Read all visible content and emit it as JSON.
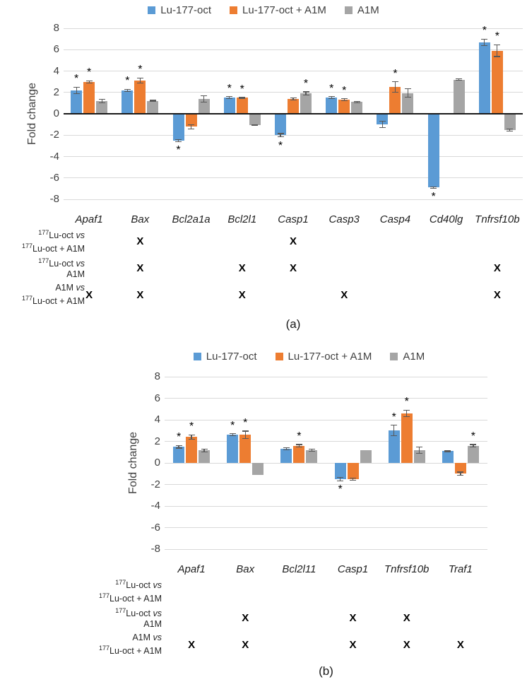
{
  "figure": {
    "panel_a_caption": "(a)",
    "panel_b_caption": "(b)"
  },
  "colors": {
    "series_blue": "#5B9BD5",
    "series_orange": "#ED7D31",
    "series_gray": "#A5A5A5",
    "gridline": "#D9D9D9",
    "zero_axis": "#1A1A1A",
    "error_bar": "#595959"
  },
  "chart_data": [
    {
      "type": "bar",
      "panel": "a",
      "caption": "(a)",
      "title": "",
      "xlabel": "",
      "ylabel": "Fold change",
      "ylim": [
        -8,
        8
      ],
      "yticks": [
        8,
        6,
        4,
        2,
        0,
        -2,
        -4,
        -6,
        -8
      ],
      "grid": true,
      "legend_position": "top-center",
      "significance_marker": "*",
      "categories": [
        "Apaf1",
        "Bax",
        "Bcl2a1a",
        "Bcl2l1",
        "Casp1",
        "Casp3",
        "Casp4",
        "Cd40lg",
        "Tnfrsf10b"
      ],
      "series": [
        {
          "name": "Lu-177-oct",
          "color": "#5B9BD5",
          "values": [
            2.2,
            2.2,
            -2.5,
            1.5,
            -2.0,
            1.5,
            -1.0,
            -6.9,
            6.7
          ],
          "errors": [
            0.3,
            0.1,
            0.1,
            0.1,
            0.15,
            0.1,
            0.3,
            0.05,
            0.3
          ],
          "significant": [
            true,
            true,
            true,
            true,
            true,
            true,
            false,
            true,
            true
          ]
        },
        {
          "name": "Lu-177-oct + A1M",
          "color": "#ED7D31",
          "values": [
            3.0,
            3.1,
            -1.2,
            1.5,
            1.4,
            1.3,
            2.5,
            null,
            5.9
          ],
          "errors": [
            0.1,
            0.25,
            0.2,
            0.05,
            0.1,
            0.1,
            0.5,
            null,
            0.55
          ],
          "significant": [
            true,
            true,
            false,
            true,
            false,
            true,
            true,
            false,
            true
          ]
        },
        {
          "name": "A1M",
          "color": "#A5A5A5",
          "values": [
            1.2,
            1.2,
            1.4,
            -1.05,
            1.9,
            1.1,
            1.95,
            3.2,
            -1.5
          ],
          "errors": [
            0.15,
            0.05,
            0.3,
            0.05,
            0.15,
            0.05,
            0.4,
            0.08,
            0.1
          ],
          "significant": [
            false,
            false,
            false,
            false,
            true,
            false,
            false,
            false,
            false
          ]
        }
      ],
      "comparisons": {
        "mark_symbol": "X",
        "rows": [
          {
            "label_line1": "177Lu-oct vs",
            "label_line2": "177Lu-oct  + A1M",
            "marks": [
              "Bax",
              "Casp1"
            ]
          },
          {
            "label_line1": "177Lu-oct vs",
            "label_line2": "A1M",
            "marks": [
              "Bax",
              "Bcl2l1",
              "Casp1",
              "Tnfrsf10b"
            ]
          },
          {
            "label_line1": "A1M vs",
            "label_line2": "177Lu-oct + A1M",
            "marks": [
              "Apaf1",
              "Bax",
              "Bcl2l1",
              "Casp3",
              "Tnfrsf10b"
            ]
          }
        ]
      }
    },
    {
      "type": "bar",
      "panel": "b",
      "caption": "(b)",
      "title": "",
      "xlabel": "",
      "ylabel": "Fold change",
      "ylim": [
        -8,
        8
      ],
      "yticks": [
        8,
        6,
        4,
        2,
        0,
        -2,
        -4,
        -6,
        -8
      ],
      "grid": true,
      "legend_position": "top-center",
      "significance_marker": "*",
      "categories": [
        "Apaf1",
        "Bax",
        "Bcl2l11",
        "Casp1",
        "Tnfrsf10b",
        "Traf1"
      ],
      "series": [
        {
          "name": "Lu-177-oct",
          "color": "#5B9BD5",
          "values": [
            1.5,
            2.6,
            1.3,
            -1.5,
            3.0,
            1.1
          ],
          "errors": [
            0.12,
            0.1,
            0.1,
            0.15,
            0.5,
            0.05
          ],
          "significant": [
            true,
            true,
            false,
            true,
            true,
            false
          ]
        },
        {
          "name": "Lu-177-oct + A1M",
          "color": "#ED7D31",
          "values": [
            2.4,
            2.6,
            1.6,
            -1.5,
            4.6,
            -1.0
          ],
          "errors": [
            0.2,
            0.35,
            0.1,
            0.1,
            0.3,
            0.15
          ],
          "significant": [
            true,
            true,
            true,
            false,
            true,
            false
          ]
        },
        {
          "name": "A1M",
          "color": "#A5A5A5",
          "values": [
            1.15,
            -1.1,
            1.2,
            1.2,
            1.2,
            1.6
          ],
          "errors": [
            0.12,
            0,
            0.1,
            0,
            0.3,
            0.1
          ],
          "significant": [
            false,
            false,
            false,
            false,
            false,
            true
          ]
        }
      ],
      "comparisons": {
        "mark_symbol": "X",
        "rows": [
          {
            "label_line1": "177Lu-oct vs",
            "label_line2": "177Lu-oct  + A1M",
            "marks": []
          },
          {
            "label_line1": "177Lu-oct vs",
            "label_line2": "A1M",
            "marks": [
              "Bax",
              "Casp1",
              "Tnfrsf10b"
            ]
          },
          {
            "label_line1": "A1M vs",
            "label_line2": "177Lu-oct + A1M",
            "marks": [
              "Apaf1",
              "Bax",
              "Casp1",
              "Tnfrsf10b",
              "Traf1"
            ]
          }
        ]
      }
    }
  ]
}
